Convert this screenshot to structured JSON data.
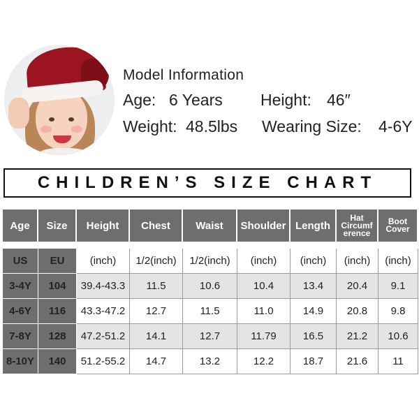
{
  "model": {
    "title": "Model Information",
    "age_label": "Age:",
    "age_value": "6 Years",
    "height_label": "Height:",
    "height_value": "46″",
    "weight_label": "Weight:",
    "weight_value": "48.5lbs",
    "size_label": "Wearing Size:",
    "size_value": "4-6Y"
  },
  "banner": {
    "title": "CHILDREN’S SIZE CHART"
  },
  "table": {
    "headers": [
      "Age",
      "Size",
      "Height",
      "Chest",
      "Waist",
      "Shoulder",
      "Length",
      "Hat Circumference",
      "Boot Cover"
    ],
    "hat_header_lines": [
      "Hat",
      "Circumf",
      "erence"
    ],
    "boot_header_lines": [
      "Boot",
      "Cover"
    ],
    "units": [
      "US",
      "EU",
      "(inch)",
      "1/2(inch)",
      "1/2(inch)",
      "(inch)",
      "(inch)",
      "(inch)",
      "(inch)"
    ],
    "rows": [
      [
        "3-4Y",
        "104",
        "39.4-43.3",
        "11.5",
        "10.6",
        "10.4",
        "13.4",
        "20.4",
        "9.1"
      ],
      [
        "4-6Y",
        "116",
        "43.3-47.2",
        "12.7",
        "11.5",
        "11.0",
        "14.9",
        "20.8",
        "9.8"
      ],
      [
        "7-8Y",
        "128",
        "47.2-51.2",
        "14.1",
        "12.7",
        "11.79",
        "16.5",
        "21.2",
        "10.6"
      ],
      [
        "8-10Y",
        "140",
        "51.2-55.2",
        "14.7",
        "13.2",
        "12.2",
        "18.7",
        "21.6",
        "11"
      ]
    ]
  },
  "colors": {
    "header_bg": "#6e6e6e",
    "row_shade": "#e4e4e4"
  }
}
